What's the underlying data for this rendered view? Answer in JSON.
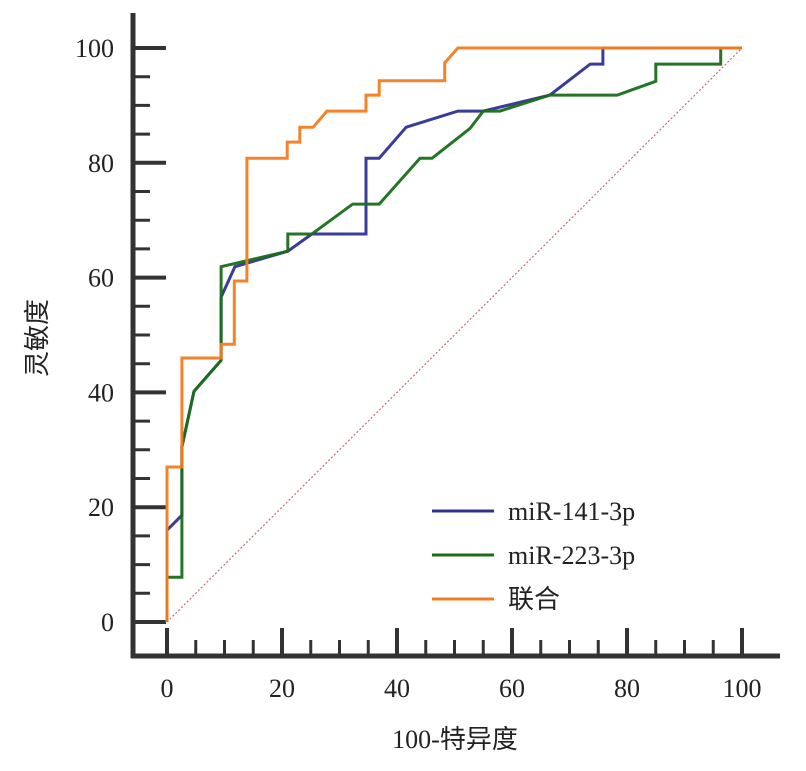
{
  "chart_data": {
    "type": "line",
    "xlabel": "100-特异度",
    "ylabel": "灵敏度",
    "xlim": [
      0,
      100
    ],
    "ylim": [
      0,
      100
    ],
    "xticks": [
      0,
      20,
      40,
      60,
      80,
      100
    ],
    "yticks": [
      0,
      20,
      40,
      60,
      80,
      100
    ],
    "grid": false,
    "legend_position": "bottom-right",
    "reference_line": {
      "x": [
        0,
        100
      ],
      "y": [
        0,
        100
      ],
      "color": "#c07070",
      "style": "dotted"
    },
    "series": [
      {
        "name": "miR-141-3p",
        "color": "#2e3192",
        "points": [
          [
            0,
            0
          ],
          [
            0,
            16
          ],
          [
            2.6,
            18.6
          ],
          [
            2.6,
            30.5
          ],
          [
            4.7,
            40.2
          ],
          [
            9.4,
            45.6
          ],
          [
            9.4,
            56.6
          ],
          [
            11.8,
            61.9
          ],
          [
            21,
            64.6
          ],
          [
            25.2,
            67.6
          ],
          [
            34.6,
            67.6
          ],
          [
            34.6,
            80.8
          ],
          [
            36.9,
            80.8
          ],
          [
            41.6,
            86.2
          ],
          [
            50.6,
            89
          ],
          [
            55,
            89
          ],
          [
            66.6,
            91.8
          ],
          [
            73.6,
            97.2
          ],
          [
            75.8,
            97.2
          ],
          [
            75.8,
            100
          ],
          [
            100,
            100
          ]
        ]
      },
      {
        "name": "miR-223-3p",
        "color": "#1a6e1a",
        "points": [
          [
            0,
            0
          ],
          [
            0,
            7.8
          ],
          [
            2.6,
            7.8
          ],
          [
            2.6,
            30.5
          ],
          [
            4.7,
            40.2
          ],
          [
            9.4,
            45.6
          ],
          [
            9.4,
            61.9
          ],
          [
            21,
            64.6
          ],
          [
            21,
            67.6
          ],
          [
            25.2,
            67.6
          ],
          [
            32.3,
            72.8
          ],
          [
            36.9,
            72.8
          ],
          [
            44,
            80.8
          ],
          [
            46.1,
            80.8
          ],
          [
            52.7,
            86
          ],
          [
            55,
            89
          ],
          [
            57.9,
            89
          ],
          [
            66.6,
            91.8
          ],
          [
            78.3,
            91.8
          ],
          [
            85,
            94.2
          ],
          [
            85,
            97.2
          ],
          [
            96.3,
            97.2
          ],
          [
            96.3,
            100
          ],
          [
            100,
            100
          ]
        ]
      },
      {
        "name": "联合",
        "color": "#f47c20",
        "points": [
          [
            0,
            0
          ],
          [
            0,
            27
          ],
          [
            2.6,
            27
          ],
          [
            2.6,
            46
          ],
          [
            9.4,
            46
          ],
          [
            9.4,
            48.4
          ],
          [
            11.7,
            48.4
          ],
          [
            11.7,
            59.4
          ],
          [
            13.9,
            59.4
          ],
          [
            13.9,
            80.8
          ],
          [
            20.9,
            80.8
          ],
          [
            20.9,
            83.6
          ],
          [
            23.1,
            83.6
          ],
          [
            23.1,
            86.2
          ],
          [
            25.4,
            86.2
          ],
          [
            27.8,
            89
          ],
          [
            34.6,
            89
          ],
          [
            34.6,
            91.8
          ],
          [
            36.9,
            91.8
          ],
          [
            36.9,
            94.3
          ],
          [
            48.3,
            94.3
          ],
          [
            48.3,
            97.4
          ],
          [
            50.6,
            100
          ],
          [
            100,
            100
          ]
        ]
      }
    ]
  }
}
